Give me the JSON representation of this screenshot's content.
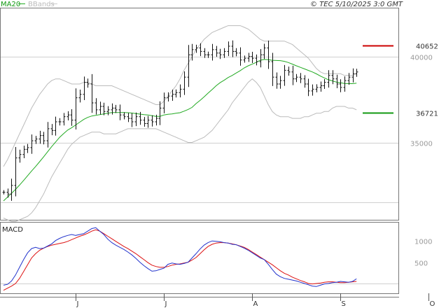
{
  "header": {
    "ma_label": "MA20",
    "bb_label": "BBands",
    "copyright": "© TEC 5/10/2025 3:0 GMT"
  },
  "colors": {
    "ma": "#22aa22",
    "bbands": "#bbbbbb",
    "price_bars": "#111111",
    "resistance": "#cc0000",
    "support": "#119911",
    "macd": "#2233cc",
    "signal": "#dd1111",
    "grid": "#d0d0d0",
    "axis_text": "#999999"
  },
  "chart_data": [
    {
      "type": "ohlc",
      "title": "",
      "y_ticks": [
        35000,
        40000
      ],
      "y_tick_labels": [
        "35000",
        "40000"
      ],
      "ylim": [
        30500,
        42800
      ],
      "x_tick_labels": [
        "J",
        "J",
        "A",
        "S",
        "O"
      ],
      "x_tick_index": [
        18,
        40,
        62,
        84,
        106
      ],
      "levels": [
        {
          "name": "resistance",
          "label": "40652",
          "value": 40652
        },
        {
          "name": "support",
          "label": "36721",
          "value": 36721
        }
      ],
      "series": [
        {
          "name": "Price",
          "values": [
            32100,
            32000,
            32500,
            34100,
            34300,
            34600,
            34700,
            35100,
            35200,
            35400,
            35100,
            35800,
            35700,
            36200,
            36200,
            36500,
            36600,
            36300,
            37600,
            37800,
            38500,
            38400,
            37300,
            36900,
            37100,
            36800,
            36900,
            37000,
            36900,
            36600,
            36500,
            36400,
            36200,
            36500,
            36300,
            36100,
            36300,
            36200,
            36400,
            37000,
            37600,
            37700,
            37800,
            37900,
            38100,
            38800,
            40100,
            40400,
            40500,
            40300,
            40100,
            40100,
            40400,
            40200,
            40100,
            40300,
            40600,
            40300,
            40200,
            39800,
            39900,
            40000,
            39900,
            39700,
            40100,
            40500,
            39700,
            38800,
            38400,
            38600,
            39200,
            39100,
            38700,
            38800,
            38700,
            38400,
            38000,
            38100,
            38200,
            38300,
            38500,
            38900,
            38700,
            38400,
            38200,
            38600,
            38800,
            39000,
            39100
          ]
        },
        {
          "name": "MA20",
          "values": [
            31600,
            31820,
            32040,
            32270,
            32520,
            32790,
            33060,
            33340,
            33600,
            33880,
            34160,
            34460,
            34760,
            35030,
            35300,
            35520,
            35720,
            35860,
            36020,
            36180,
            36340,
            36460,
            36540,
            36580,
            36620,
            36660,
            36700,
            36740,
            36740,
            36740,
            36740,
            36730,
            36710,
            36680,
            36650,
            36620,
            36600,
            36560,
            36520,
            36520,
            36600,
            36640,
            36660,
            36700,
            36730,
            36820,
            36920,
            37040,
            37260,
            37450,
            37650,
            37870,
            38080,
            38300,
            38480,
            38620,
            38780,
            38900,
            39040,
            39180,
            39340,
            39460,
            39560,
            39660,
            39780,
            39830,
            39820,
            39780,
            39770,
            39760,
            39720,
            39650,
            39560,
            39460,
            39370,
            39280,
            39190,
            39100,
            38990,
            38860,
            38750,
            38650,
            38580,
            38510,
            38470,
            38430,
            38420,
            38420,
            38450
          ]
        },
        {
          "name": "BB Upper",
          "values": [
            33600,
            34000,
            34500,
            35000,
            35500,
            36000,
            36500,
            37000,
            37400,
            37800,
            38100,
            38400,
            38600,
            38700,
            38700,
            38600,
            38500,
            38400,
            38400,
            38400,
            38500,
            38500,
            38400,
            38300,
            38300,
            38300,
            38300,
            38300,
            38200,
            38100,
            38000,
            37900,
            37800,
            37700,
            37600,
            37500,
            37400,
            37300,
            37200,
            37200,
            37400,
            37700,
            38000,
            38300,
            38700,
            39200,
            39600,
            40000,
            40400,
            40700,
            41000,
            41200,
            41400,
            41500,
            41600,
            41700,
            41800,
            41800,
            41800,
            41800,
            41700,
            41600,
            41400,
            41200,
            41000,
            40900,
            40900,
            40900,
            40900,
            40900,
            40900,
            40800,
            40700,
            40500,
            40300,
            40100,
            39900,
            39600,
            39300,
            39100,
            39000,
            39000,
            39000,
            39000,
            39000,
            38900,
            38900,
            38900,
            39000
          ]
        },
        {
          "name": "BB Lower",
          "values": [
            30600,
            30500,
            30400,
            30400,
            30500,
            30600,
            30700,
            30900,
            31200,
            31600,
            32000,
            32500,
            33000,
            33400,
            33800,
            34200,
            34600,
            34900,
            35100,
            35300,
            35400,
            35500,
            35600,
            35600,
            35600,
            35500,
            35500,
            35500,
            35500,
            35600,
            35700,
            35800,
            35800,
            35800,
            35800,
            35800,
            35800,
            35800,
            35800,
            35700,
            35600,
            35500,
            35400,
            35300,
            35200,
            35100,
            35000,
            35000,
            35100,
            35200,
            35300,
            35500,
            35700,
            36000,
            36300,
            36600,
            36900,
            37300,
            37600,
            37900,
            38200,
            38500,
            38700,
            38500,
            38200,
            37700,
            37200,
            36800,
            36600,
            36500,
            36500,
            36500,
            36400,
            36400,
            36400,
            36500,
            36500,
            36600,
            36700,
            36700,
            36800,
            36800,
            37000,
            37100,
            37100,
            37100,
            37000,
            37000,
            36900
          ]
        }
      ]
    },
    {
      "type": "line",
      "title": "MACD",
      "y_ticks": [
        500,
        1000
      ],
      "y_tick_labels": [
        "500",
        "1000"
      ],
      "ylim": [
        -230,
        1430
      ],
      "series": [
        {
          "name": "MACD",
          "values": [
            -40,
            -20,
            60,
            200,
            380,
            560,
            720,
            820,
            850,
            820,
            830,
            880,
            930,
            1010,
            1060,
            1100,
            1130,
            1150,
            1130,
            1150,
            1170,
            1230,
            1290,
            1310,
            1230,
            1150,
            1040,
            960,
            900,
            850,
            800,
            740,
            670,
            590,
            500,
            420,
            350,
            290,
            300,
            330,
            360,
            450,
            480,
            460,
            450,
            470,
            500,
            600,
            700,
            810,
            900,
            960,
            1000,
            990,
            980,
            960,
            950,
            920,
            910,
            870,
            830,
            780,
            720,
            660,
            600,
            560,
            450,
            330,
            220,
            160,
            120,
            100,
            80,
            60,
            30,
            0,
            -30,
            -60,
            -70,
            -40,
            -10,
            0,
            20,
            30,
            50,
            40,
            30,
            50,
            110
          ]
        },
        {
          "name": "Signal",
          "values": [
            -160,
            -110,
            -60,
            0,
            120,
            280,
            440,
            600,
            700,
            780,
            830,
            870,
            900,
            920,
            940,
            960,
            990,
            1030,
            1070,
            1110,
            1140,
            1180,
            1230,
            1260,
            1230,
            1170,
            1110,
            1050,
            990,
            930,
            870,
            820,
            760,
            700,
            630,
            560,
            490,
            430,
            400,
            380,
            380,
            400,
            430,
            450,
            460,
            480,
            500,
            550,
            610,
            700,
            790,
            870,
            920,
            950,
            960,
            960,
            950,
            930,
            910,
            880,
            850,
            800,
            740,
            680,
            620,
            560,
            500,
            440,
            370,
            300,
            240,
            200,
            150,
            110,
            70,
            40,
            0,
            -10,
            0,
            10,
            30,
            40,
            40,
            30,
            20,
            20,
            30,
            40,
            50
          ]
        }
      ]
    }
  ]
}
